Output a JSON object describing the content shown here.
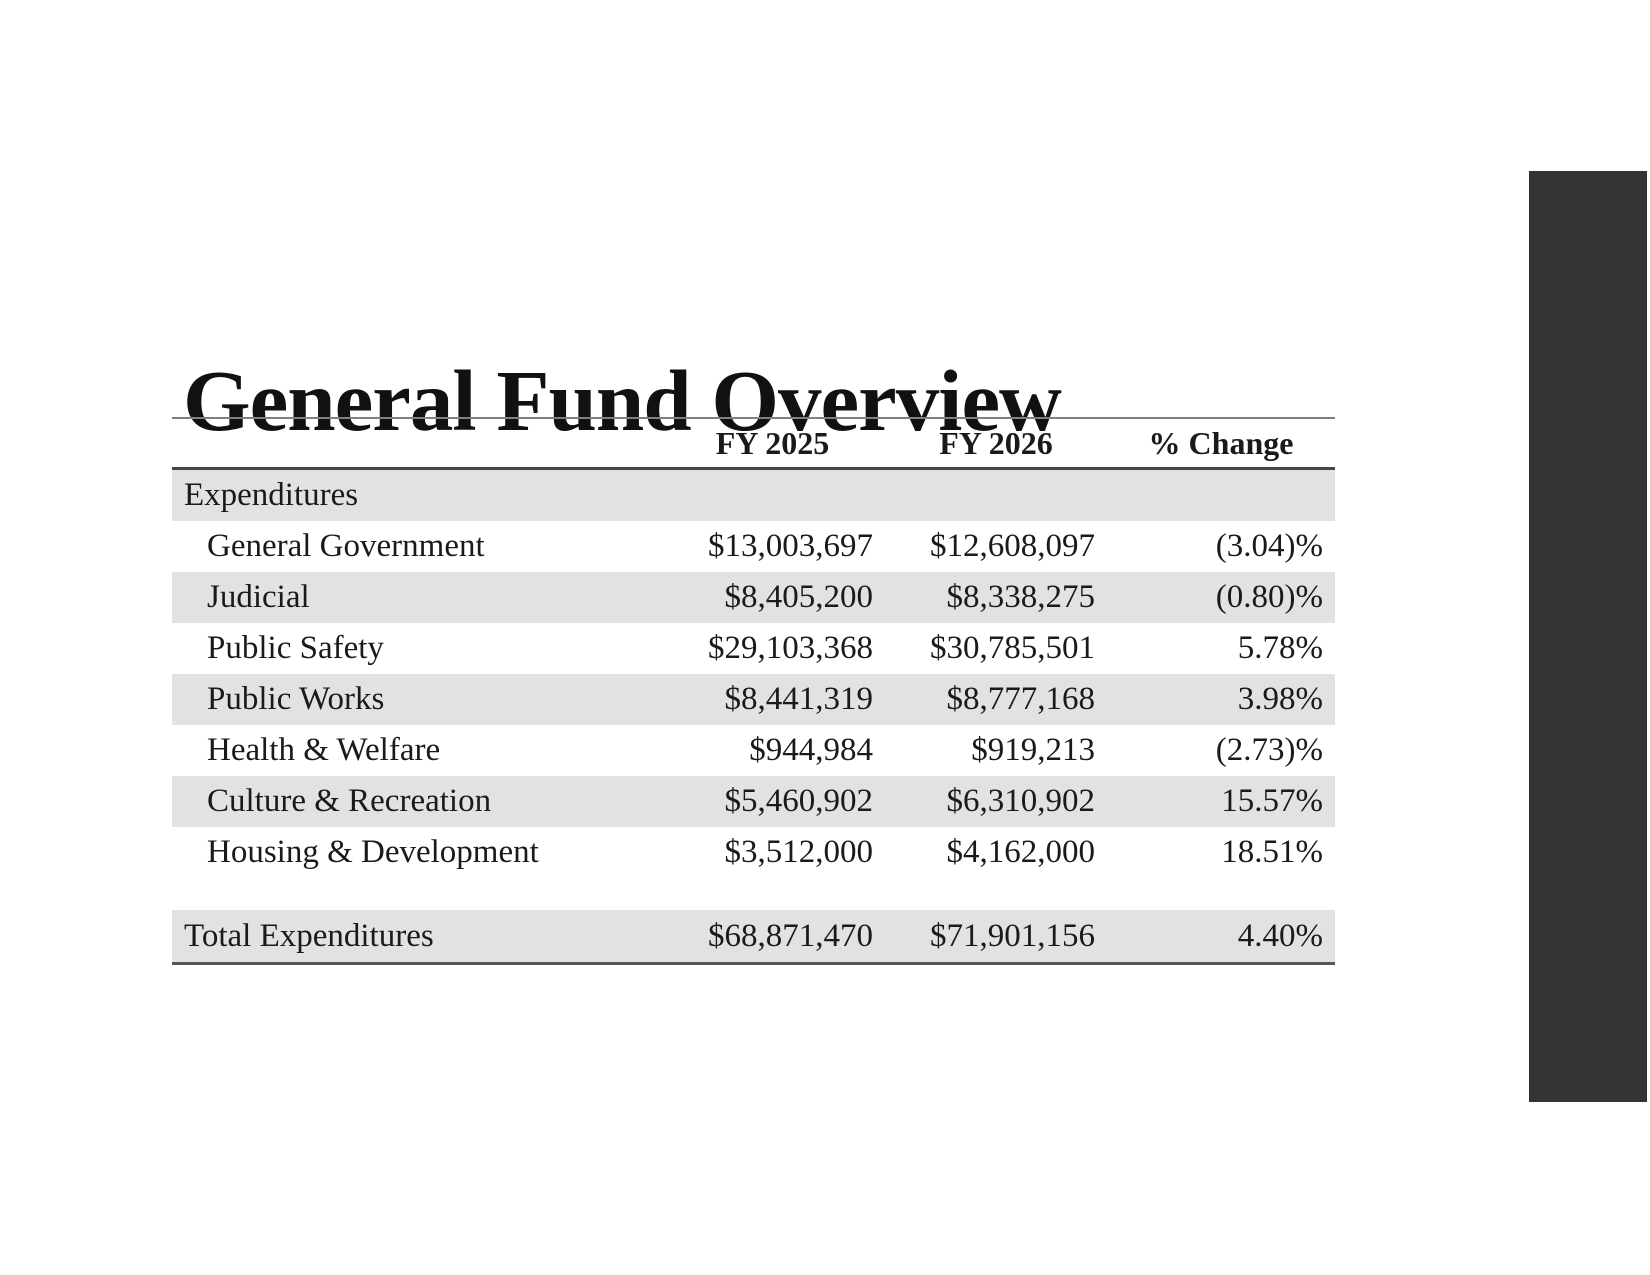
{
  "slide": {
    "title": "General Fund Overview",
    "accent_bar_color": "#343434"
  },
  "table": {
    "columns": [
      "",
      "FY 2025",
      "FY 2026",
      "% Change"
    ],
    "section_header": "Expenditures",
    "rows": [
      {
        "label": "General Government",
        "fy2025": "$13,003,697",
        "fy2026": "$12,608,097",
        "change": "(3.04)%"
      },
      {
        "label": "Judicial",
        "fy2025": "$8,405,200",
        "fy2026": "$8,338,275",
        "change": "(0.80)%"
      },
      {
        "label": "Public Safety",
        "fy2025": "$29,103,368",
        "fy2026": "$30,785,501",
        "change": "5.78%"
      },
      {
        "label": "Public Works",
        "fy2025": "$8,441,319",
        "fy2026": "$8,777,168",
        "change": "3.98%"
      },
      {
        "label": "Health & Welfare",
        "fy2025": "$944,984",
        "fy2026": "$919,213",
        "change": "(2.73)%"
      },
      {
        "label": "Culture & Recreation",
        "fy2025": "$5,460,902",
        "fy2026": "$6,310,902",
        "change": "15.57%"
      },
      {
        "label": "Housing & Development",
        "fy2025": "$3,512,000",
        "fy2026": "$4,162,000",
        "change": "18.51%"
      }
    ],
    "total": {
      "label": "Total Expenditures",
      "fy2025": "$68,871,470",
      "fy2026": "$71,901,156",
      "change": "4.40%"
    },
    "colors": {
      "row_band": "#e2e2e2",
      "top_rule": "#808080",
      "header_rule": "#454545",
      "bottom_rule": "#555555"
    }
  }
}
